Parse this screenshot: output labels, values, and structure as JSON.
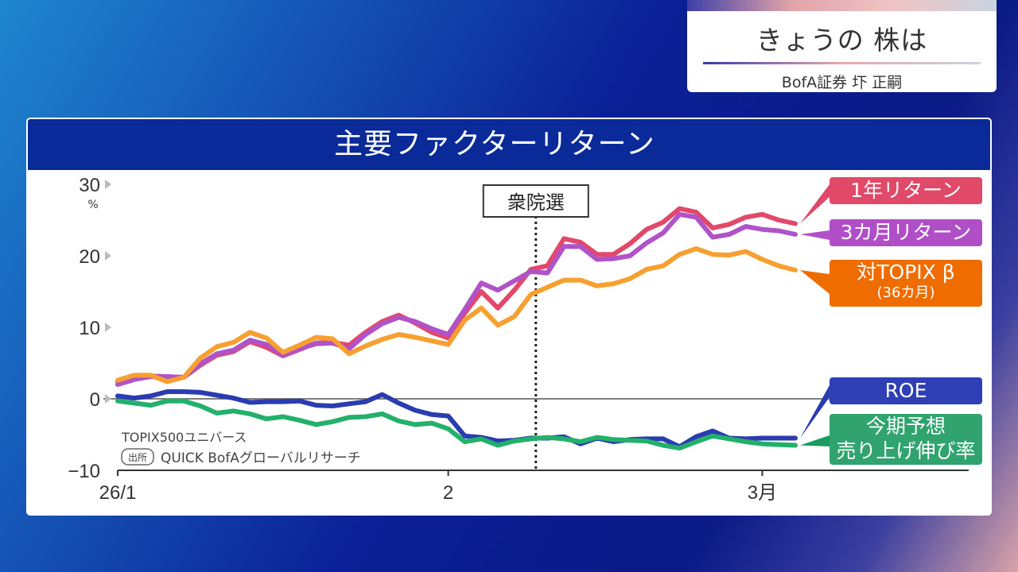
{
  "caption": {
    "title": "きょうの 株は",
    "guest": "BofA証券 圷 正嗣"
  },
  "chart_data": {
    "type": "line",
    "title": "主要ファクターリターン",
    "ylabel": "%",
    "ylim": [
      -10,
      30
    ],
    "yticks": [
      "30",
      "20",
      "10",
      "0",
      "−10"
    ],
    "ytick_values": [
      30,
      20,
      10,
      0,
      -10
    ],
    "xticks": [
      {
        "label": "26/1",
        "index": 0
      },
      {
        "label": "2",
        "index": 20
      },
      {
        "label": "3月",
        "index": 39
      }
    ],
    "event": {
      "label": "衆院選",
      "index": 25.3
    },
    "note": "TOPIX500ユニバース",
    "source_tag": "出所",
    "source": "QUICK BofAグローバルリサーチ",
    "series": [
      {
        "name": "1年リターン",
        "color": "#e2486a",
        "values": [
          2.4,
          3.1,
          3.2,
          3.1,
          3.0,
          4.7,
          6.1,
          6.6,
          8.0,
          7.2,
          6.0,
          6.9,
          7.8,
          7.9,
          7.5,
          9.3,
          10.8,
          11.7,
          10.6,
          9.3,
          8.5,
          12,
          15,
          12.7,
          15.2,
          18.1,
          18.6,
          22.4,
          21.9,
          20.2,
          20.2,
          21.7,
          23.7,
          24.7,
          26.6,
          26.1,
          23.9,
          24.4,
          25.4,
          25.8,
          25.0,
          24.5
        ]
      },
      {
        "name": "3カ月リターン",
        "color": "#b052c8",
        "values": [
          2.0,
          2.7,
          3.1,
          3.1,
          3.0,
          4.9,
          6.3,
          6.8,
          8.2,
          7.6,
          6.1,
          7.0,
          7.7,
          7.8,
          7.0,
          9.0,
          10.5,
          11.4,
          10.8,
          9.8,
          9.0,
          12.5,
          16.2,
          15.2,
          16.5,
          17.8,
          17.6,
          21.3,
          21.3,
          19.5,
          19.6,
          20.0,
          21.8,
          23.2,
          25.8,
          25.4,
          22.6,
          23.0,
          24.1,
          23.7,
          23.5,
          23.0
        ]
      },
      {
        "name": "対TOPIX β",
        "sub": "(36カ月)",
        "color": "#f5a030",
        "label_color": "#ef6c00",
        "values": [
          2.6,
          3.3,
          3.3,
          2.4,
          3.0,
          5.7,
          7.3,
          7.9,
          9.3,
          8.5,
          6.5,
          7.5,
          8.6,
          8.4,
          6.3,
          7.4,
          8.3,
          9.0,
          8.6,
          8.1,
          7.6,
          11.0,
          12.7,
          10.3,
          11.5,
          14.6,
          15.6,
          16.6,
          16.6,
          15.8,
          16.1,
          16.8,
          18.1,
          18.6,
          20.2,
          21.0,
          20.2,
          20.1,
          20.6,
          19.5,
          18.6,
          18.0
        ]
      },
      {
        "name": "ROE",
        "color": "#2b3bb0",
        "values": [
          0.4,
          0.1,
          0.4,
          1.0,
          1.0,
          0.9,
          0.5,
          0.1,
          -0.5,
          -0.4,
          -0.4,
          -0.3,
          -0.9,
          -1.0,
          -0.7,
          -0.4,
          0.6,
          -0.6,
          -1.6,
          -2.2,
          -2.4,
          -5.2,
          -5.4,
          -5.9,
          -5.8,
          -5.5,
          -5.5,
          -5.3,
          -6.3,
          -5.5,
          -6.0,
          -5.7,
          -5.6,
          -5.6,
          -6.7,
          -5.3,
          -4.5,
          -5.5,
          -5.6,
          -5.5,
          -5.5,
          -5.5
        ]
      },
      {
        "name": "今期予想",
        "sub": "売り上げ伸び率",
        "color": "#22b06a",
        "label_color": "#1a9a60",
        "values": [
          -0.3,
          -0.6,
          -0.9,
          -0.3,
          -0.3,
          -1.0,
          -2.0,
          -1.7,
          -2.1,
          -2.8,
          -2.5,
          -3.0,
          -3.6,
          -3.2,
          -2.6,
          -2.5,
          -2.1,
          -3.1,
          -3.6,
          -3.4,
          -4.2,
          -6.0,
          -5.6,
          -6.5,
          -5.9,
          -5.6,
          -5.4,
          -5.6,
          -6.0,
          -5.4,
          -5.7,
          -5.8,
          -5.9,
          -6.5,
          -6.9,
          -6.0,
          -5.2,
          -5.6,
          -6.0,
          -6.3,
          -6.4,
          -6.5
        ]
      }
    ]
  }
}
